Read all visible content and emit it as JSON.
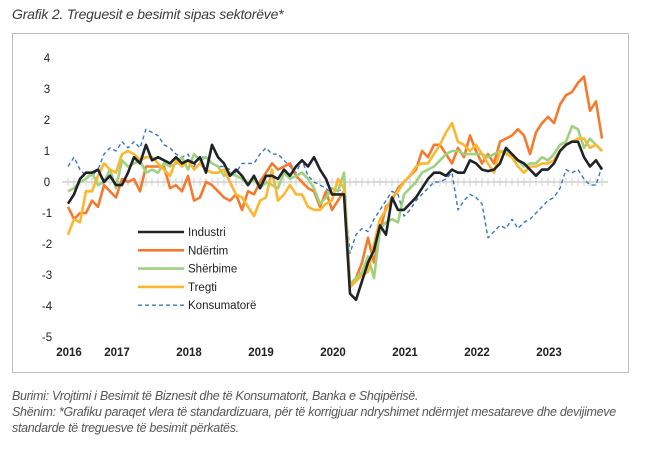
{
  "title": "Grafik 2. Treguesit e besimit sipas sektorëve*",
  "notes": {
    "source": "Burimi: Vrojtimi i Besimit të Biznesit dhe të Konsumatorit, Banka e Shqipërisë.",
    "note": "Shënim: *Grafiku paraqet vlera të standardizuara, për të korrigjuar ndryshimet ndërmjet mesatareve dhe devijimeve standarde të treguesve të besimit përkatës."
  },
  "chart_data": {
    "type": "line",
    "title": "",
    "xlabel": "",
    "ylabel": "",
    "ylim": [
      -5,
      4
    ],
    "yticks": [
      4,
      3,
      2,
      1,
      0,
      -1,
      -2,
      -3,
      -4,
      -5
    ],
    "xtick_labels": [
      "2016",
      "2017",
      "2018",
      "2019",
      "2020",
      "2021",
      "2022",
      "2023"
    ],
    "grid": false,
    "legend_position": "lower-left inside",
    "x": [
      "2016-05",
      "2016-06",
      "2016-07",
      "2016-08",
      "2016-09",
      "2016-10",
      "2016-11",
      "2016-12",
      "2017-01",
      "2017-02",
      "2017-03",
      "2017-04",
      "2017-05",
      "2017-06",
      "2017-07",
      "2017-08",
      "2017-09",
      "2017-10",
      "2017-11",
      "2017-12",
      "2018-01",
      "2018-02",
      "2018-03",
      "2018-04",
      "2018-05",
      "2018-06",
      "2018-07",
      "2018-08",
      "2018-09",
      "2018-10",
      "2018-11",
      "2018-12",
      "2019-01",
      "2019-02",
      "2019-03",
      "2019-04",
      "2019-05",
      "2019-06",
      "2019-07",
      "2019-08",
      "2019-09",
      "2019-10",
      "2019-11",
      "2019-12",
      "2020-01",
      "2020-02",
      "2020-03",
      "2020-04",
      "2020-05",
      "2020-06",
      "2020-07",
      "2020-08",
      "2020-09",
      "2020-10",
      "2020-11",
      "2020-12",
      "2021-01",
      "2021-02",
      "2021-03",
      "2021-04",
      "2021-05",
      "2021-06",
      "2021-07",
      "2021-08",
      "2021-09",
      "2021-10",
      "2021-11",
      "2021-12",
      "2022-01",
      "2022-02",
      "2022-03",
      "2022-04",
      "2022-05",
      "2022-06",
      "2022-07",
      "2022-08",
      "2022-09",
      "2022-10",
      "2022-11",
      "2022-12",
      "2023-01",
      "2023-02",
      "2023-03",
      "2023-04",
      "2023-05",
      "2023-06",
      "2023-07",
      "2023-08",
      "2023-09",
      "2023-10"
    ],
    "series": [
      {
        "name": "Industri",
        "color": "#1f2328",
        "dashed": false,
        "values": [
          -0.7,
          -0.4,
          0.1,
          0.3,
          0.3,
          0.4,
          0.0,
          0.2,
          -0.1,
          -0.1,
          0.3,
          0.8,
          0.6,
          1.2,
          0.7,
          0.8,
          0.7,
          0.6,
          0.8,
          0.6,
          0.7,
          0.6,
          0.8,
          0.3,
          1.2,
          0.8,
          0.6,
          0.2,
          0.4,
          0.2,
          -0.1,
          0.2,
          -0.2,
          0.2,
          0.2,
          0.1,
          0.4,
          0.2,
          0.5,
          0.7,
          0.5,
          0.8,
          0.4,
          0.1,
          -0.4,
          -0.4,
          -0.4,
          -3.6,
          -3.8,
          -3.2,
          -2.6,
          -2.2,
          -1.4,
          -1.7,
          -0.5,
          -0.9,
          -0.9,
          -0.7,
          -0.5,
          -0.2,
          0.1,
          0.3,
          0.3,
          0.2,
          0.4,
          0.3,
          0.3,
          0.7,
          0.6,
          0.4,
          0.35,
          0.4,
          0.6,
          1.1,
          0.9,
          0.7,
          0.6,
          0.4,
          0.2,
          0.4,
          0.4,
          0.6,
          1.0,
          1.2,
          1.3,
          1.3,
          0.8,
          0.5,
          0.7,
          0.4
        ]
      },
      {
        "name": "Ndërtim",
        "color": "#f47a2f",
        "dashed": false,
        "values": [
          -0.8,
          -1.2,
          -1.0,
          -1.0,
          -0.6,
          -0.8,
          -0.1,
          -0.3,
          -0.5,
          0.1,
          0.0,
          0.1,
          -0.3,
          0.5,
          0.5,
          0.5,
          0.5,
          -0.2,
          -0.1,
          -0.3,
          0.2,
          -0.6,
          -0.5,
          0.0,
          -0.1,
          -0.3,
          -0.5,
          -0.6,
          -0.4,
          -0.9,
          -0.3,
          -0.4,
          0.0,
          0.3,
          0.6,
          0.4,
          0.5,
          0.6,
          0.2,
          0.0,
          -0.2,
          -0.3,
          -0.8,
          -0.3,
          -0.9,
          -0.6,
          -0.3,
          -3.3,
          -3.1,
          -2.6,
          -1.8,
          -2.6,
          -1.6,
          -0.8,
          -0.6,
          -0.2,
          0.0,
          0.2,
          0.4,
          1.0,
          0.8,
          1.2,
          1.2,
          0.9,
          0.6,
          1.1,
          0.8,
          1.5,
          1.0,
          0.6,
          0.9,
          0.6,
          1.3,
          1.4,
          1.5,
          1.7,
          1.5,
          0.9,
          1.6,
          1.9,
          2.1,
          1.9,
          2.5,
          2.8,
          2.9,
          3.2,
          3.4,
          2.3,
          2.6,
          1.4
        ]
      },
      {
        "name": "Shërbime",
        "color": "#9fd17f",
        "dashed": false,
        "values": [
          -0.3,
          -0.2,
          0.0,
          0.1,
          0.3,
          -0.1,
          0.0,
          0.4,
          -0.2,
          0.7,
          0.5,
          0.6,
          0.7,
          0.3,
          0.4,
          0.3,
          0.6,
          0.5,
          0.6,
          0.8,
          0.4,
          0.9,
          0.7,
          0.8,
          0.6,
          0.5,
          0.2,
          0.3,
          0.2,
          0.1,
          -0.1,
          0.1,
          -0.2,
          0.0,
          -0.1,
          -0.2,
          0.3,
          0.1,
          0.2,
          0.3,
          0.1,
          -0.2,
          -0.7,
          -0.5,
          -0.2,
          -0.3,
          0.3,
          -3.3,
          -3.1,
          -2.9,
          -2.4,
          -3.1,
          -1.5,
          -1.3,
          -1.2,
          -1.3,
          -0.4,
          -0.2,
          0.0,
          0.3,
          0.4,
          0.5,
          0.7,
          0.9,
          1.0,
          1.0,
          0.9,
          0.9,
          0.9,
          0.9,
          0.8,
          0.9,
          1.0,
          1.0,
          0.8,
          0.7,
          0.5,
          0.6,
          0.6,
          0.8,
          0.7,
          0.9,
          1.2,
          1.3,
          1.8,
          1.7,
          1.1,
          1.4,
          1.2,
          1.0
        ]
      },
      {
        "name": "Tregti",
        "color": "#fbb72e",
        "dashed": false,
        "values": [
          -1.7,
          -1.2,
          -1.3,
          -0.3,
          -0.3,
          0.2,
          0.6,
          0.4,
          0.3,
          0.9,
          1.0,
          0.9,
          0.7,
          0.8,
          0.8,
          0.6,
          0.4,
          0.2,
          0.7,
          0.5,
          0.7,
          0.4,
          0.6,
          0.4,
          0.3,
          0.3,
          0.4,
          0.0,
          -0.4,
          -0.5,
          -0.8,
          -1.1,
          -0.6,
          -0.5,
          0.4,
          -0.6,
          -0.4,
          -0.1,
          -0.4,
          -0.4,
          -0.8,
          -0.9,
          -0.9,
          -0.7,
          -0.6,
          0.1,
          -0.2,
          -3.4,
          -3.2,
          -3.0,
          -2.9,
          -2.0,
          -1.2,
          -0.9,
          -0.5,
          -0.3,
          0.0,
          0.2,
          0.5,
          0.6,
          0.6,
          0.9,
          1.2,
          1.6,
          1.9,
          1.3,
          1.2,
          1.0,
          1.2,
          0.9,
          0.6,
          0.3,
          1.0,
          0.9,
          0.8,
          0.5,
          0.3,
          0.5,
          0.5,
          0.6,
          0.6,
          0.7,
          1.0,
          1.2,
          1.3,
          1.4,
          1.4,
          1.1,
          1.2,
          1.0
        ]
      },
      {
        "name": "Konsumatorë",
        "color": "#3a75c4",
        "dashed": true,
        "values": [
          0.5,
          0.8,
          0.4,
          0.2,
          0.2,
          0.4,
          0.9,
          1.1,
          1.0,
          1.3,
          1.1,
          1.3,
          1.1,
          1.7,
          1.6,
          1.5,
          1.2,
          1.1,
          0.9,
          0.8,
          0.9,
          0.5,
          0.8,
          0.8,
          0.6,
          0.5,
          0.5,
          0.4,
          0.3,
          0.6,
          0.6,
          0.6,
          0.9,
          1.1,
          0.9,
          0.9,
          0.7,
          0.5,
          0.3,
          0.7,
          0.2,
          0.0,
          -0.1,
          -0.2,
          -0.4,
          -0.3,
          -0.2,
          -2.3,
          -1.7,
          -1.5,
          -1.6,
          -1.2,
          -0.9,
          -0.6,
          -0.3,
          -0.4,
          -1.1,
          -0.9,
          -0.6,
          -0.4,
          -0.2,
          0.0,
          0.0,
          0.1,
          0.3,
          -0.9,
          -0.6,
          -0.4,
          -0.5,
          -0.7,
          -1.8,
          -1.6,
          -1.4,
          -1.5,
          -1.2,
          -1.5,
          -1.3,
          -1.2,
          -1.0,
          -0.8,
          -0.6,
          -0.5,
          -0.2,
          0.4,
          0.3,
          0.4,
          0.1,
          -0.1,
          -0.1,
          0.5
        ]
      }
    ]
  }
}
